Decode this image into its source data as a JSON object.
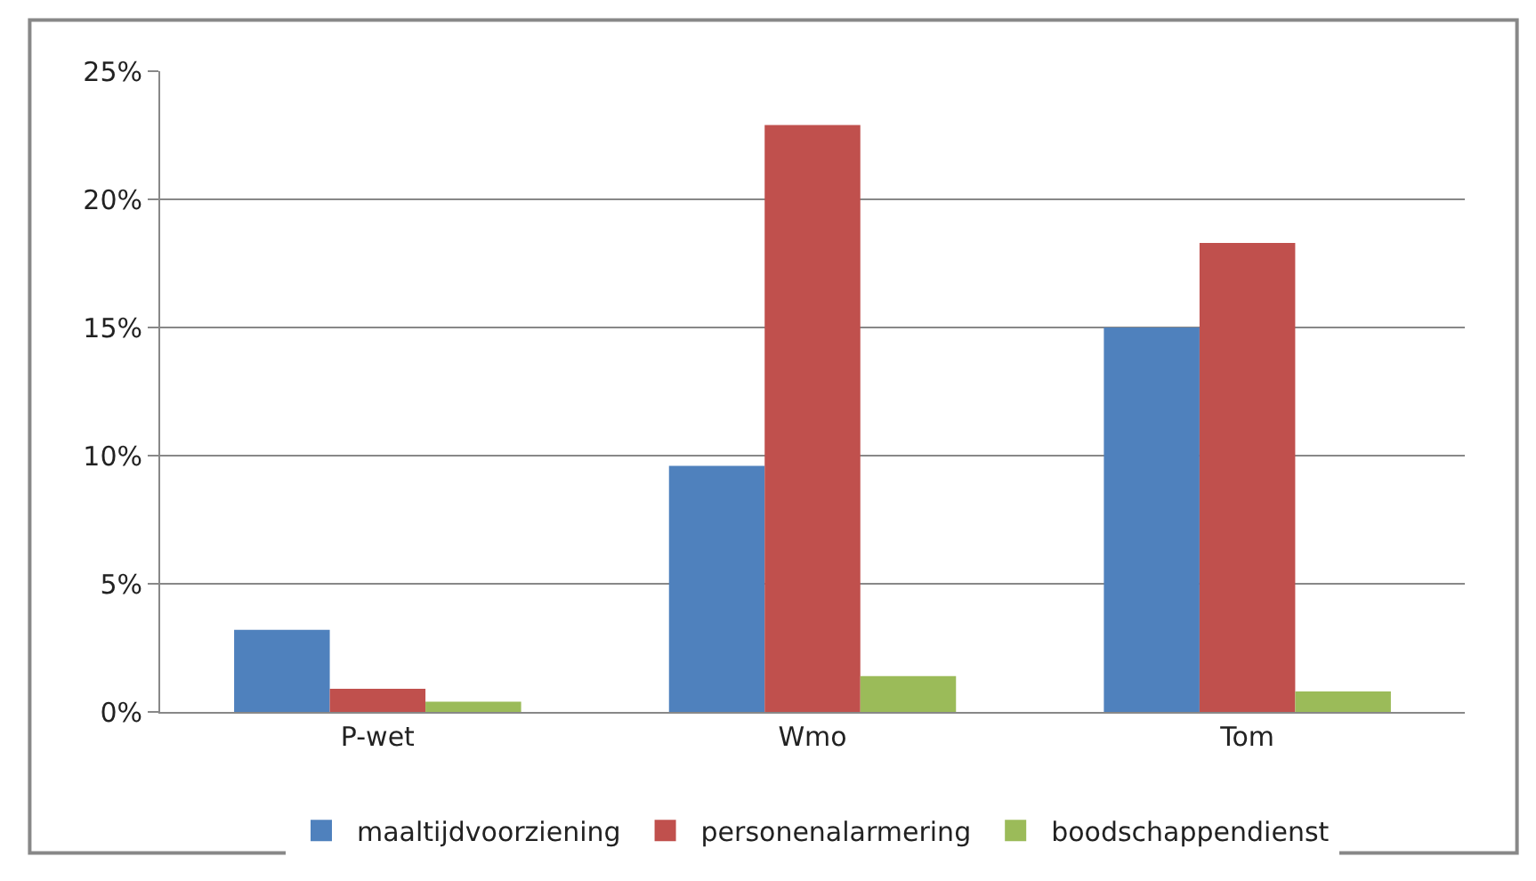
{
  "chart_data": {
    "type": "bar",
    "categories": [
      "P-wet",
      "Wmo",
      "Tom"
    ],
    "series": [
      {
        "name": "maaltijdvoorziening",
        "color": "#4f81bd",
        "values": [
          3.2,
          9.6,
          15.0
        ]
      },
      {
        "name": "personenalarmering",
        "color": "#c0504d",
        "values": [
          0.9,
          22.9,
          18.3
        ]
      },
      {
        "name": "boodschappendienst",
        "color": "#9bbb59",
        "values": [
          0.4,
          1.4,
          0.8
        ]
      }
    ],
    "ylim": [
      0,
      25
    ],
    "yticks": [
      {
        "value": 0,
        "label": "0%"
      },
      {
        "value": 5,
        "label": "5%"
      },
      {
        "value": 10,
        "label": "10%"
      },
      {
        "value": 15,
        "label": "15%"
      },
      {
        "value": 20,
        "label": "20%"
      },
      {
        "value": 25,
        "label": "25%"
      }
    ],
    "grid": "y",
    "legend": "bottom"
  }
}
